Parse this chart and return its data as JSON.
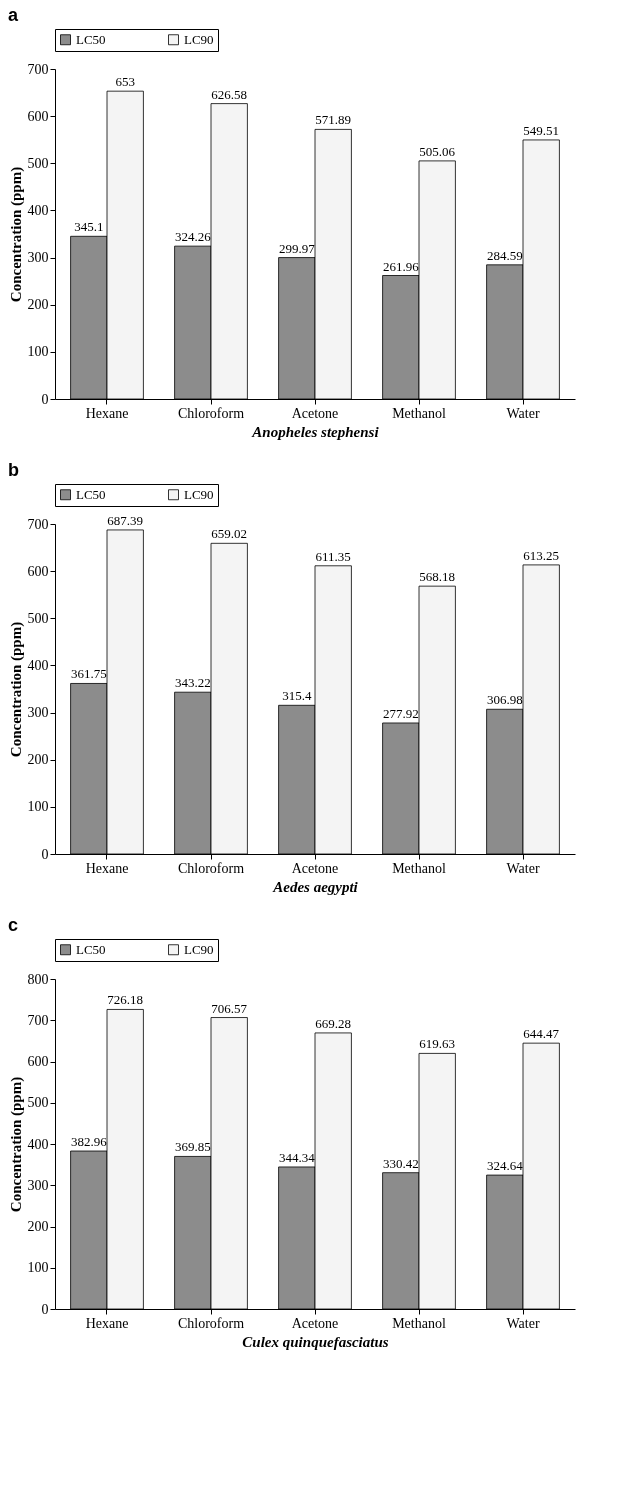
{
  "chart_data": [
    {
      "type": "bar",
      "title": "a",
      "xlabel": "Anopheles stephensi",
      "ylabel": "Concentration (ppm)",
      "categories": [
        "Hexane",
        "Chloroform",
        "Acetone",
        "Methanol",
        "Water"
      ],
      "series": [
        {
          "name": "LC50",
          "color": "#8c8c8c",
          "values": [
            345.1,
            324.26,
            299.97,
            261.96,
            284.59
          ]
        },
        {
          "name": "LC90",
          "color": "#f4f4f4",
          "values": [
            653,
            626.58,
            571.89,
            505.06,
            549.51
          ]
        }
      ],
      "ylim": [
        0,
        700
      ],
      "yticks": [
        0,
        100,
        200,
        300,
        400,
        500,
        600,
        700
      ],
      "data_labels": true,
      "legend": "top",
      "grid": false
    },
    {
      "type": "bar",
      "title": "b",
      "xlabel": "Aedes aegypti",
      "ylabel": "Concentration (ppm)",
      "categories": [
        "Hexane",
        "Chloroform",
        "Acetone",
        "Methanol",
        "Water"
      ],
      "series": [
        {
          "name": "LC50",
          "color": "#8c8c8c",
          "values": [
            361.75,
            343.22,
            315.4,
            277.92,
            306.98
          ]
        },
        {
          "name": "LC90",
          "color": "#f4f4f4",
          "values": [
            687.39,
            659.02,
            611.35,
            568.18,
            613.25
          ]
        }
      ],
      "ylim": [
        0,
        700
      ],
      "yticks": [
        0,
        100,
        200,
        300,
        400,
        500,
        600,
        700
      ],
      "data_labels": true,
      "legend": "top",
      "grid": false
    },
    {
      "type": "bar",
      "title": "c",
      "xlabel": "Culex quinquefasciatus",
      "ylabel": "Concentration (ppm)",
      "categories": [
        "Hexane",
        "Chloroform",
        "Acetone",
        "Methanol",
        "Water"
      ],
      "series": [
        {
          "name": "LC50",
          "color": "#8c8c8c",
          "values": [
            382.96,
            369.85,
            344.34,
            330.42,
            324.64
          ]
        },
        {
          "name": "LC90",
          "color": "#f4f4f4",
          "values": [
            726.18,
            706.57,
            669.28,
            619.63,
            644.47
          ]
        }
      ],
      "ylim": [
        0,
        800
      ],
      "yticks": [
        0,
        100,
        200,
        300,
        400,
        500,
        600,
        700,
        800
      ],
      "data_labels": true,
      "legend": "top",
      "grid": false
    }
  ]
}
